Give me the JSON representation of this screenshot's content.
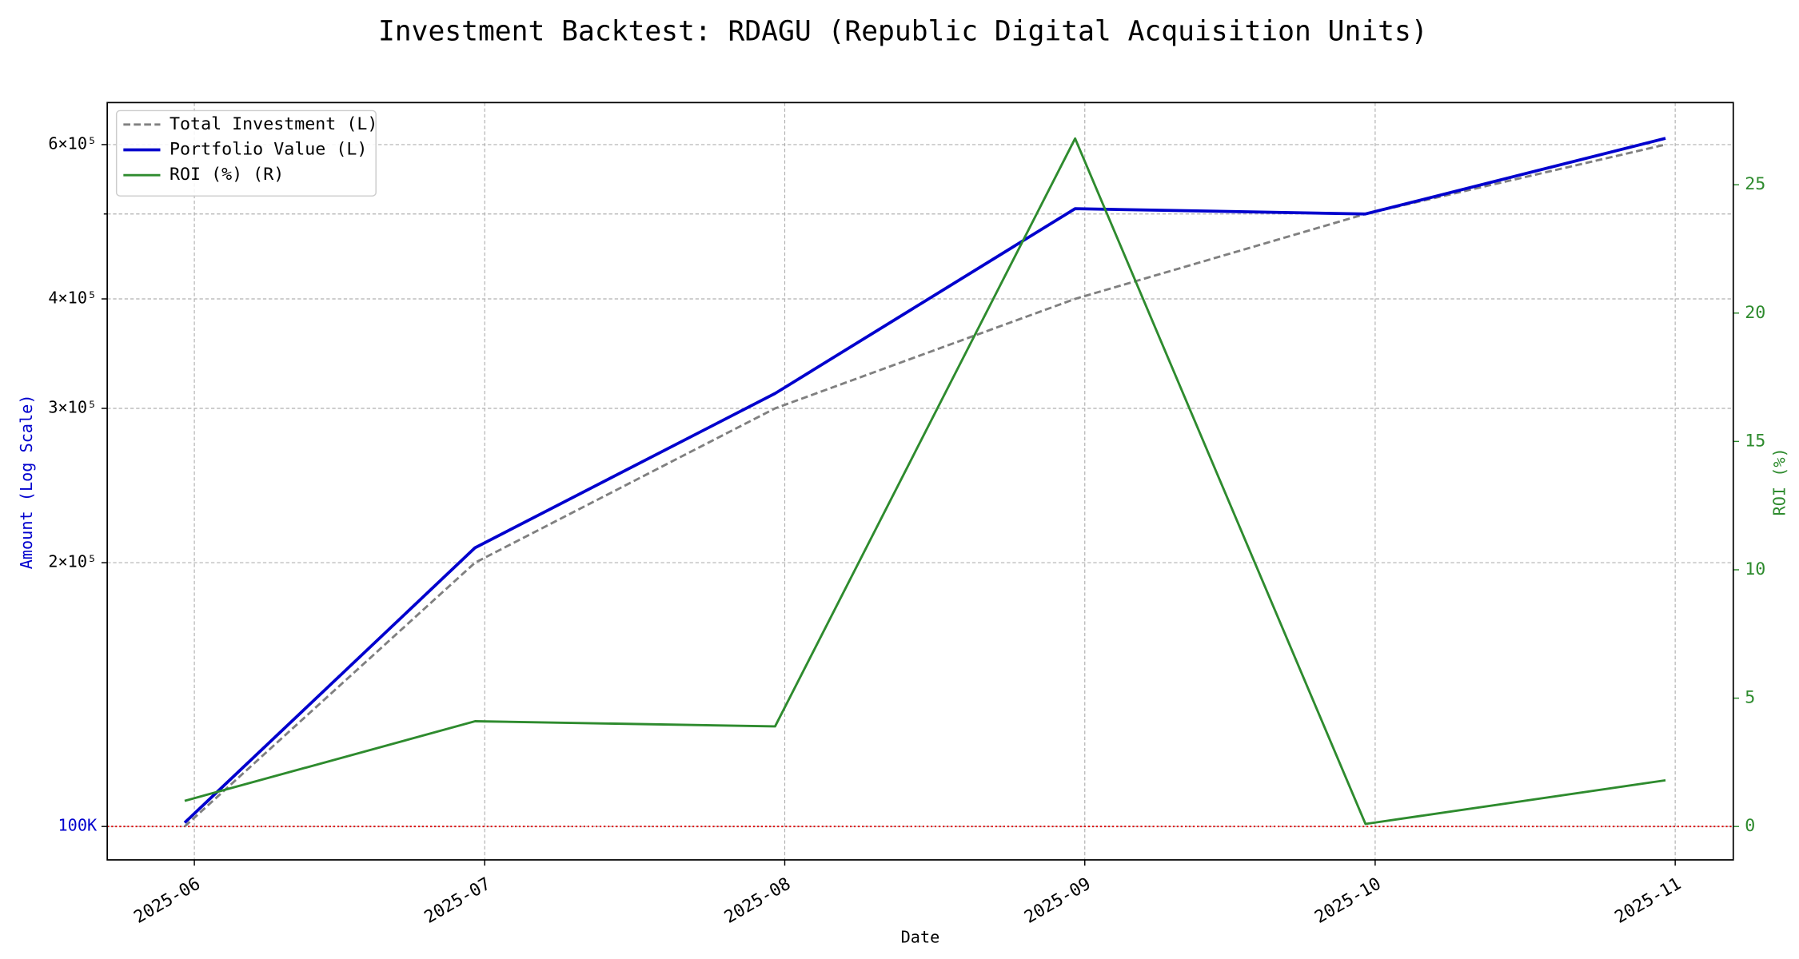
{
  "chart_data": {
    "type": "line",
    "title": "Investment Backtest: RDAGU (Republic Digital Acquisition Units)",
    "xlabel": "Date",
    "ylabel": "Amount (Log Scale)",
    "y2label": "ROI (%)",
    "x": [
      "2025-05-31",
      "2025-06-30",
      "2025-07-31",
      "2025-08-31",
      "2025-09-30",
      "2025-10-31"
    ],
    "series": [
      {
        "name": "Total Investment (L)",
        "color": "#808080",
        "dashed": true,
        "values": [
          100000,
          200000,
          300000,
          400000,
          500000,
          600000
        ]
      },
      {
        "name": "Portfolio Value (L)",
        "color": "#0000cd",
        "values": [
          101000,
          208000,
          312000,
          507000,
          500000,
          610000
        ]
      },
      {
        "name": "ROI (%) (R)",
        "color": "#2e8b2e",
        "axis": "y2",
        "values": [
          1.0,
          4.1,
          3.9,
          26.8,
          0.1,
          1.8
        ]
      }
    ],
    "xlim": [
      "2025-05-23",
      "2025-11-07"
    ],
    "xticks": [
      {
        "value": "2025-06-01",
        "label": "2025-06"
      },
      {
        "value": "2025-07-01",
        "label": "2025-07"
      },
      {
        "value": "2025-08-01",
        "label": "2025-08"
      },
      {
        "value": "2025-09-01",
        "label": "2025-09"
      },
      {
        "value": "2025-10-01",
        "label": "2025-10"
      },
      {
        "value": "2025-11-01",
        "label": "2025-11"
      }
    ],
    "ylog": true,
    "ylim": [
      91600,
      670000
    ],
    "yticks": [
      {
        "value": 100000,
        "label": "100K"
      },
      {
        "value": 200000,
        "label": "2×10⁵"
      },
      {
        "value": 300000,
        "label": "3×10⁵"
      },
      {
        "value": 400000,
        "label": "4×10⁵"
      },
      {
        "value": 600000,
        "label": "6×10⁵"
      }
    ],
    "yminorticks": [
      500000
    ],
    "y2lim": [
      -1.3,
      28.2
    ],
    "y2ticks": [
      0,
      5,
      10,
      15,
      20,
      25
    ],
    "hline": {
      "value": 100000,
      "color": "#dd0000"
    },
    "grid": true,
    "legend": "upper left"
  }
}
